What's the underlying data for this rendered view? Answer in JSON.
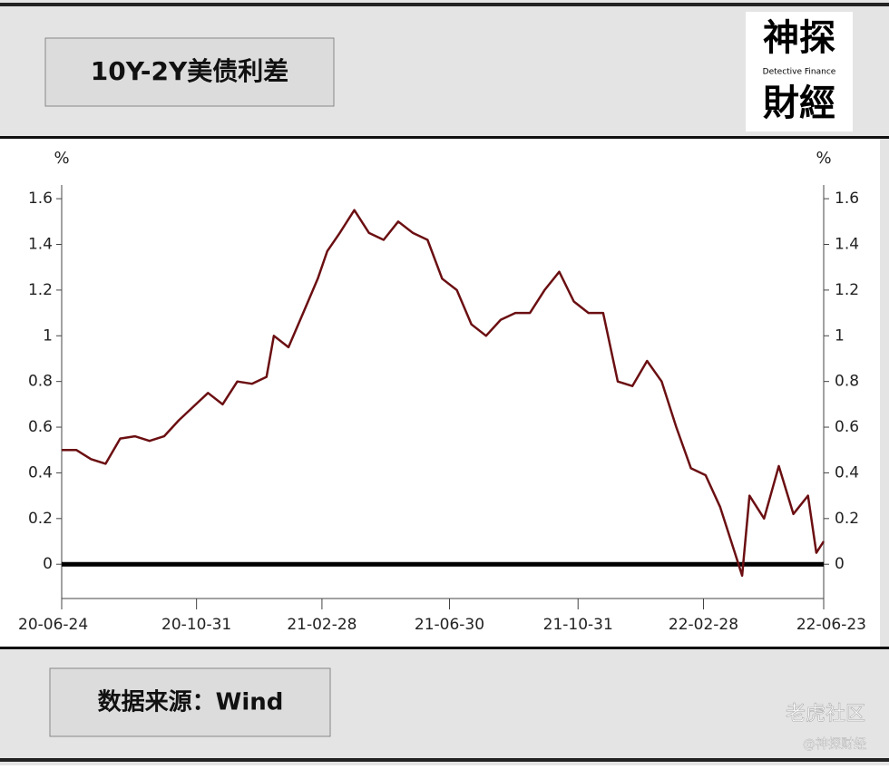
{
  "header": {
    "title": "10Y-2Y美债利差",
    "logo_top": "神探",
    "logo_mid": "Detective Finance",
    "logo_bottom": "財經"
  },
  "footer": {
    "source": "数据来源：Wind",
    "watermark": "老虎社区",
    "handle": "@神探财经"
  },
  "chart_data": {
    "type": "line",
    "y_unit": "%",
    "color": "#6b0f12",
    "x": [
      "20-06-24",
      "20-07-08",
      "20-07-22",
      "20-08-05",
      "20-08-19",
      "20-09-02",
      "20-09-16",
      "20-09-30",
      "20-10-14",
      "20-10-28",
      "20-11-11",
      "20-11-25",
      "20-12-09",
      "20-12-23",
      "21-01-06",
      "21-01-13",
      "21-01-27",
      "21-02-10",
      "21-02-24",
      "21-03-05",
      "21-03-17",
      "21-03-31",
      "21-04-14",
      "21-04-28",
      "21-05-12",
      "21-05-26",
      "21-06-09",
      "21-06-23",
      "21-07-07",
      "21-07-21",
      "21-08-04",
      "21-08-18",
      "21-09-01",
      "21-09-15",
      "21-09-29",
      "21-10-13",
      "21-10-27",
      "21-11-10",
      "21-11-24",
      "21-12-08",
      "21-12-22",
      "22-01-05",
      "22-01-19",
      "22-02-02",
      "22-02-16",
      "22-03-02",
      "22-03-16",
      "22-03-30",
      "22-04-06",
      "22-04-13",
      "22-04-27",
      "22-05-11",
      "22-05-25",
      "22-06-08",
      "22-06-16",
      "22-06-23"
    ],
    "values": [
      0.5,
      0.5,
      0.46,
      0.44,
      0.55,
      0.56,
      0.54,
      0.56,
      0.63,
      0.69,
      0.75,
      0.7,
      0.8,
      0.79,
      0.82,
      1.0,
      0.95,
      1.1,
      1.25,
      1.37,
      1.45,
      1.55,
      1.45,
      1.42,
      1.5,
      1.45,
      1.42,
      1.25,
      1.2,
      1.05,
      1.0,
      1.07,
      1.1,
      1.1,
      1.2,
      1.28,
      1.15,
      1.1,
      1.1,
      0.8,
      0.78,
      0.89,
      0.8,
      0.6,
      0.42,
      0.39,
      0.25,
      0.05,
      -0.05,
      0.3,
      0.2,
      0.43,
      0.22,
      0.3,
      0.05,
      0.1
    ],
    "xlim": [
      "20-06-24",
      "22-06-23"
    ],
    "xticks": [
      "20-06-24",
      "20-10-31",
      "21-02-28",
      "21-06-30",
      "21-10-31",
      "22-02-28",
      "22-06-23"
    ],
    "ylim": [
      -0.15,
      1.66
    ],
    "yticks": [
      0,
      0.2,
      0.4,
      0.6,
      0.8,
      1,
      1.2,
      1.4,
      1.6
    ]
  }
}
